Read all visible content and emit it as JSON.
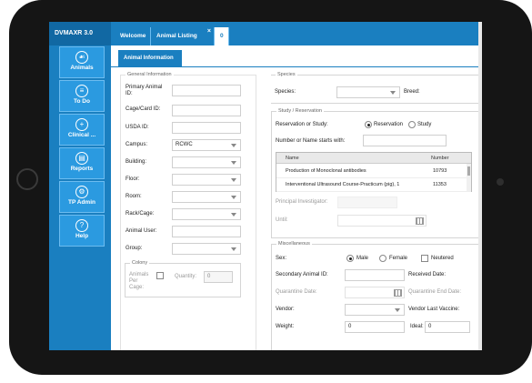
{
  "app": {
    "title": "DVMAXR 3.0"
  },
  "sidebar": {
    "items": [
      {
        "label": "Animals",
        "icon": "paw-icon"
      },
      {
        "label": "To Do",
        "icon": "list-icon"
      },
      {
        "label": "Clinical ...",
        "icon": "plus-icon"
      },
      {
        "label": "Reports",
        "icon": "report-icon"
      },
      {
        "label": "TP Admin",
        "icon": "gear-icon"
      },
      {
        "label": "Help",
        "icon": "help-icon"
      }
    ]
  },
  "tabs": {
    "items": [
      {
        "label": "Welcome"
      },
      {
        "label": "Animal Listing"
      },
      {
        "label": "0"
      }
    ],
    "close_glyph": "×"
  },
  "subtab": {
    "label": "Animal Information"
  },
  "general": {
    "legend": "General Information",
    "primary_animal_id": {
      "label": "Primary Animal ID:",
      "value": ""
    },
    "cage_card_id": {
      "label": "Cage/Card ID:",
      "value": ""
    },
    "usda_id": {
      "label": "USDA ID:",
      "value": ""
    },
    "campus": {
      "label": "Campus:",
      "value": "RCWC"
    },
    "building": {
      "label": "Building:",
      "value": ""
    },
    "floor": {
      "label": "Floor:",
      "value": ""
    },
    "room": {
      "label": "Room:",
      "value": ""
    },
    "rack_cage": {
      "label": "Rack/Cage:",
      "value": ""
    },
    "animal_user": {
      "label": "Animal User:",
      "value": ""
    },
    "group": {
      "label": "Group:",
      "value": ""
    }
  },
  "colony": {
    "legend": "Colony",
    "animals_per_cage": {
      "label": "Animals Per Cage:"
    },
    "quantity": {
      "label": "Quantity:",
      "value": "0"
    }
  },
  "species": {
    "legend": "Species",
    "species_label": "Species:",
    "species_value": "",
    "breed_label": "Breed:"
  },
  "study": {
    "legend": "Study / Reservation",
    "reservation_or_study_label": "Reservation or Study:",
    "reservation_option": "Reservation",
    "study_option": "Study",
    "search_label": "Number or Name starts with:",
    "search_value": "",
    "grid": {
      "columns": [
        "Name",
        "Number"
      ],
      "rows": [
        [
          "Production of Monoclonal antibodies",
          "10793"
        ],
        [
          "Interventional Ultrasound Course-Practicum (pig), 1",
          "11353"
        ]
      ]
    },
    "principal_investigator": {
      "label": "Principal Investigator:",
      "value": ""
    },
    "until": {
      "label": "Until:",
      "value": ""
    }
  },
  "misc": {
    "legend": "Miscellaneous",
    "sex_label": "Sex:",
    "male": "Male",
    "female": "Female",
    "neutered": "Neutered",
    "secondary_animal_id": {
      "label": "Secondary Animal ID:",
      "value": ""
    },
    "received_date": {
      "label": "Received Date:",
      "value": ""
    },
    "quarantine_date": {
      "label": "Quarantine Date:",
      "value": ""
    },
    "quarantine_end_date": {
      "label": "Quarantine End Date:",
      "value": ""
    },
    "vendor": {
      "label": "Vendor:",
      "value": ""
    },
    "vendor_last_vaccine": {
      "label": "Vendor Last Vaccine:",
      "value": ""
    },
    "weight": {
      "label": "Weight:",
      "value": "0"
    },
    "ideal": {
      "label": "Ideal:",
      "value": "0"
    }
  },
  "colors": {
    "brand_blue": "#1a7fc0",
    "brand_dark": "#1168a3",
    "nav_tile": "#2b9ae0"
  }
}
